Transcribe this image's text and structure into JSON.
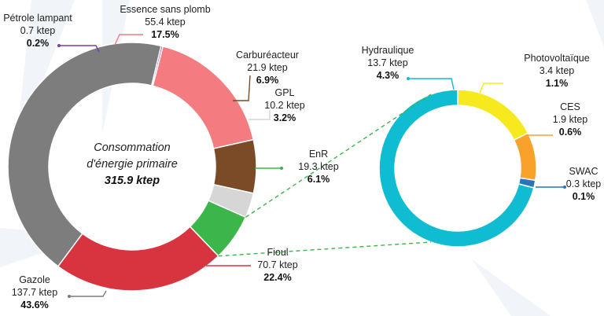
{
  "chart_data": [
    {
      "type": "pie",
      "donut": true,
      "title_lines": [
        "Consommation",
        "d'énergie primaire",
        "315.9 ktep"
      ],
      "unit": "ktep",
      "slices": [
        {
          "name": "Essence sans plomb",
          "value": 55.4,
          "pct": 17.5,
          "color": "#f47c80"
        },
        {
          "name": "Carburéacteur",
          "value": 21.9,
          "pct": 6.9,
          "color": "#7a4b26"
        },
        {
          "name": "GPL",
          "value": 10.2,
          "pct": 3.2,
          "color": "#d6d6d6"
        },
        {
          "name": "EnR",
          "value": 19.3,
          "pct": 6.1,
          "color": "#3cb54a"
        },
        {
          "name": "Fioul",
          "value": 70.7,
          "pct": 22.4,
          "color": "#d8343f"
        },
        {
          "name": "Gazole",
          "value": 137.7,
          "pct": 43.6,
          "color": "#7d7d7d"
        },
        {
          "name": "Pétrole lampant",
          "value": 0.7,
          "pct": 0.2,
          "color": "#7c3aa8"
        }
      ]
    },
    {
      "type": "pie",
      "donut": true,
      "parent": "EnR",
      "unit": "ktep",
      "slices": [
        {
          "name": "Photovoltaïque",
          "value": 3.4,
          "pct": 1.1,
          "color": "#f6ea1e"
        },
        {
          "name": "CES",
          "value": 1.9,
          "pct": 0.6,
          "color": "#f8a22c"
        },
        {
          "name": "SWAC",
          "value": 0.3,
          "pct": 0.1,
          "color": "#2a73b8"
        },
        {
          "name": "Hydraulique",
          "value": 13.7,
          "pct": 4.3,
          "color": "#0fbcd2"
        }
      ]
    }
  ]
}
